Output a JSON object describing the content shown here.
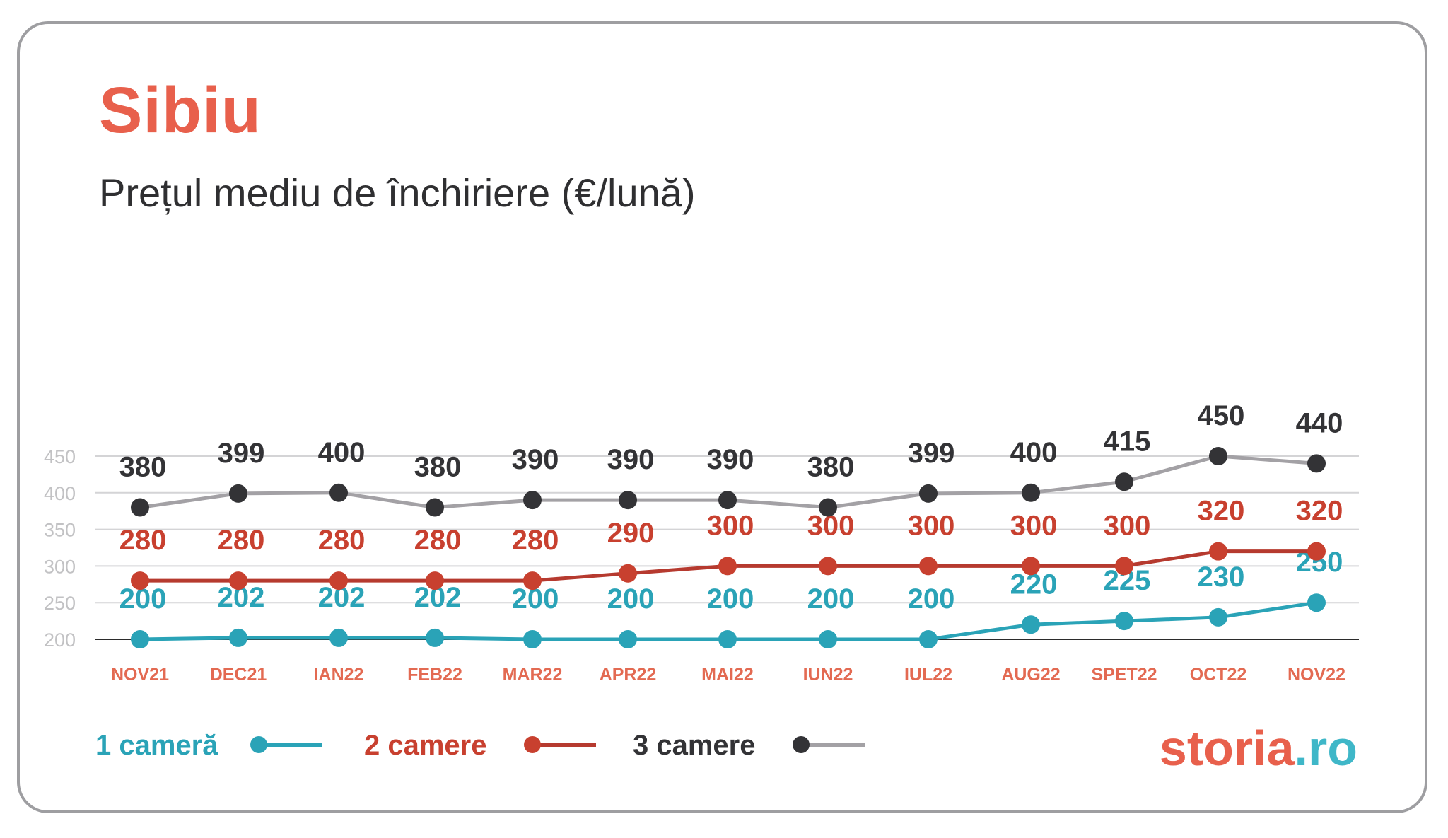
{
  "header": {
    "title": "Sibiu",
    "subtitle": "Prețul mediu de închiriere (€/lună)"
  },
  "brand": {
    "part1": "storia",
    "part2": ".ro"
  },
  "colors": {
    "title": "#e8604c",
    "teal": "#2aa3b7",
    "red": "#b63a2f",
    "dark": "#333336",
    "gray_line": "#a3a1a5",
    "grid": "#d4d4d6",
    "tick": "#c2c2c4",
    "category": "#e36a52"
  },
  "chart_data": {
    "type": "line",
    "title": "Sibiu",
    "subtitle": "Prețul mediu de închiriere (€/lună)",
    "categories": [
      "NOV21",
      "DEC21",
      "IAN22",
      "FEB22",
      "MAR22",
      "APR22",
      "MAI22",
      "IUN22",
      "IUL22",
      "AUG22",
      "SPET22",
      "OCT22",
      "NOV22"
    ],
    "yticks": [
      200,
      250,
      300,
      350,
      400,
      450
    ],
    "ylim": [
      200,
      450
    ],
    "grid": true,
    "legend_position": "bottom-left",
    "series": [
      {
        "name": "1 cameră",
        "values": [
          200,
          202,
          202,
          202,
          200,
          200,
          200,
          200,
          200,
          220,
          225,
          230,
          250
        ],
        "line_color": "#2aa3b7",
        "marker_color": "#2aa3b7",
        "label_color": "#2aa3b7"
      },
      {
        "name": "2 camere",
        "values": [
          280,
          280,
          280,
          280,
          280,
          290,
          300,
          300,
          300,
          300,
          300,
          320,
          320
        ],
        "line_color": "#b63a2f",
        "marker_color": "#c8402f",
        "label_color": "#c8402f"
      },
      {
        "name": "3 camere",
        "values": [
          380,
          399,
          400,
          380,
          390,
          390,
          390,
          380,
          399,
          400,
          415,
          450,
          440
        ],
        "line_color": "#a3a1a5",
        "marker_color": "#333336",
        "label_color": "#333336"
      }
    ]
  }
}
